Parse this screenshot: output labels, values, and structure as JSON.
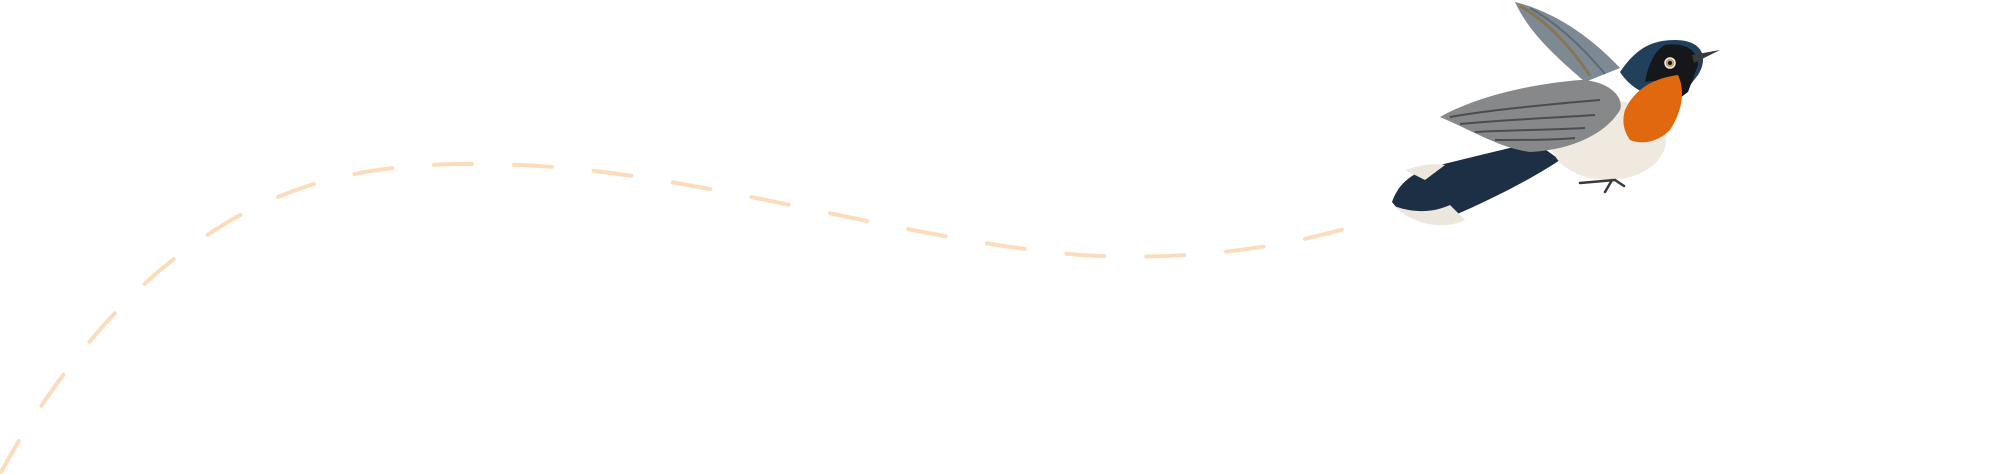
{
  "illustration": {
    "subject": "bird-in-flight",
    "colors": {
      "background": "#ffffff",
      "flight_path": "#fcdcbc",
      "bird_blue": "#1f3a52",
      "bird_orange": "#e0680f",
      "bird_white": "#efe9df",
      "wing_grey": "#7a7f80",
      "wing_brown": "#8a7552",
      "bird_black": "#15171a"
    }
  }
}
